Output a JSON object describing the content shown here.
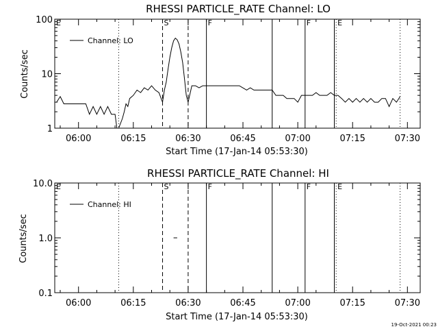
{
  "footer_timestamp": "19-Oct-2021 00:23",
  "chart_data": [
    {
      "type": "line",
      "title": "RHESSI PARTICLE_RATE Channel: LO",
      "xlabel": "Start Time (17-Jan-14 05:53:30)",
      "ylabel": "Counts/sec",
      "yscale": "log",
      "ylim": [
        1,
        100
      ],
      "xlim": [
        "05:53:30",
        "07:33:30"
      ],
      "x_ticks": [
        "06:00",
        "06:15",
        "06:30",
        "06:45",
        "07:00",
        "07:15",
        "07:30"
      ],
      "y_ticks": [
        "1",
        "10",
        "100"
      ],
      "legend": {
        "placement": "top-left",
        "entries": [
          "Channel: LO"
        ]
      },
      "markers": [
        {
          "time": "05:53:30",
          "style": "dotted",
          "label": "E"
        },
        {
          "time": "06:11",
          "style": "dotted",
          "label": ""
        },
        {
          "time": "06:23",
          "style": "dashed",
          "label": "S"
        },
        {
          "time": "06:30",
          "style": "dashed",
          "label": ""
        },
        {
          "time": "06:35",
          "style": "solid",
          "label": "F"
        },
        {
          "time": "06:53",
          "style": "solid",
          "label": ""
        },
        {
          "time": "07:02",
          "style": "solid",
          "label": "F"
        },
        {
          "time": "07:10",
          "style": "solid",
          "label": ""
        },
        {
          "time": "07:10:30",
          "style": "dotted",
          "label": "E"
        },
        {
          "time": "07:28",
          "style": "dotted",
          "label": ""
        }
      ],
      "series": [
        {
          "name": "Channel: LO",
          "x": [
            "05:54",
            "05:55",
            "05:56",
            "05:58",
            "06:00",
            "06:02",
            "06:03",
            "06:04",
            "06:05",
            "06:06",
            "06:07",
            "06:08",
            "06:09",
            "06:10",
            "06:10:30",
            "06:11",
            "06:12",
            "06:12:30",
            "06:13",
            "06:13:30",
            "06:14",
            "06:15",
            "06:16",
            "06:17",
            "06:18",
            "06:19",
            "06:20",
            "06:21",
            "06:22",
            "06:23",
            "06:23:30",
            "06:24",
            "06:24:30",
            "06:25",
            "06:25:30",
            "06:26",
            "06:26:30",
            "06:27",
            "06:27:30",
            "06:28",
            "06:28:30",
            "06:29",
            "06:29:30",
            "06:30",
            "06:31",
            "06:32",
            "06:33",
            "06:34",
            "06:35",
            "06:38",
            "06:41",
            "06:44",
            "06:46",
            "06:47",
            "06:48",
            "06:49",
            "06:50",
            "06:51",
            "06:53",
            "06:54",
            "06:55",
            "06:56",
            "06:57",
            "06:58",
            "06:59",
            "07:00",
            "07:01",
            "07:02",
            "07:03",
            "07:04",
            "07:05",
            "07:06",
            "07:07",
            "07:08",
            "07:09",
            "07:10",
            "07:11",
            "07:12",
            "07:13",
            "07:14",
            "07:15",
            "07:16",
            "07:17",
            "07:18",
            "07:19",
            "07:20",
            "07:21",
            "07:22",
            "07:23",
            "07:24",
            "07:25",
            "07:26",
            "07:27",
            "07:28"
          ],
          "y": [
            3.0,
            3.8,
            2.8,
            2.8,
            2.8,
            2.8,
            1.8,
            2.5,
            1.8,
            2.5,
            1.8,
            2.5,
            1.8,
            1.8,
            1.0,
            0.9,
            1.5,
            2.0,
            2.8,
            2.5,
            3.5,
            4.0,
            5.0,
            4.5,
            5.5,
            5.0,
            6.0,
            5.0,
            4.5,
            3.0,
            5.0,
            7.0,
            12.0,
            20.0,
            30.0,
            40.0,
            45.0,
            42.0,
            35.0,
            25.0,
            16.0,
            8.0,
            4.0,
            3.0,
            6.0,
            6.0,
            5.5,
            6.0,
            6.0,
            6.0,
            6.0,
            6.0,
            5.0,
            5.5,
            5.0,
            5.0,
            5.0,
            5.0,
            5.0,
            4.0,
            4.0,
            4.0,
            3.5,
            3.5,
            3.5,
            3.0,
            4.0,
            4.0,
            4.0,
            4.0,
            4.5,
            4.0,
            4.0,
            4.0,
            4.5,
            4.0,
            4.0,
            3.5,
            3.0,
            3.5,
            3.0,
            3.5,
            3.0,
            3.5,
            3.0,
            3.5,
            3.0,
            3.0,
            3.5,
            3.5,
            2.5,
            3.5,
            3.0,
            3.8
          ]
        }
      ]
    },
    {
      "type": "line",
      "title": "RHESSI PARTICLE_RATE Channel: HI",
      "xlabel": "Start Time (17-Jan-14 05:53:30)",
      "ylabel": "Counts/sec",
      "yscale": "log",
      "ylim": [
        0.1,
        10
      ],
      "xlim": [
        "05:53:30",
        "07:33:30"
      ],
      "x_ticks": [
        "06:00",
        "06:15",
        "06:30",
        "06:45",
        "07:00",
        "07:15",
        "07:30"
      ],
      "y_ticks": [
        "0.1",
        "1.0",
        "10.0"
      ],
      "legend": {
        "placement": "top-left",
        "entries": [
          "Channel: HI"
        ]
      },
      "markers": [
        {
          "time": "05:53:30",
          "style": "dotted",
          "label": "E"
        },
        {
          "time": "06:11",
          "style": "dotted",
          "label": ""
        },
        {
          "time": "06:23",
          "style": "dashed",
          "label": "S"
        },
        {
          "time": "06:30",
          "style": "dashed",
          "label": ""
        },
        {
          "time": "06:35",
          "style": "solid",
          "label": "F"
        },
        {
          "time": "06:53",
          "style": "solid",
          "label": ""
        },
        {
          "time": "07:02",
          "style": "solid",
          "label": "F"
        },
        {
          "time": "07:10",
          "style": "solid",
          "label": ""
        },
        {
          "time": "07:10:30",
          "style": "dotted",
          "label": "E"
        },
        {
          "time": "07:28",
          "style": "dotted",
          "label": ""
        }
      ],
      "series": [
        {
          "name": "Channel: HI",
          "x": [
            "06:26",
            "06:27"
          ],
          "y": [
            1.0,
            1.0
          ]
        }
      ]
    }
  ]
}
